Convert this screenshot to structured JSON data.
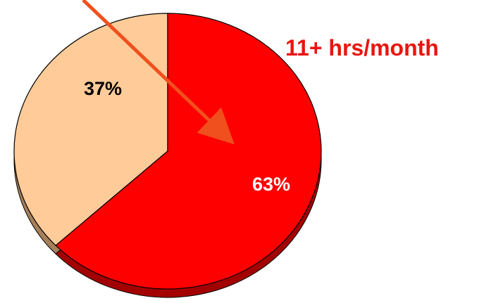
{
  "chart_data": {
    "type": "pie",
    "style": "3d",
    "slices": [
      {
        "label": "37%",
        "value": 37,
        "color": "#FFCC99",
        "side_color": "#A67F5B",
        "label_color": "#000000"
      },
      {
        "label": "63%",
        "value": 63,
        "color": "#FF0000",
        "side_color": "#A30000",
        "label_color": "#FFFFFF"
      }
    ],
    "annotation": {
      "text": "11+ hrs/month",
      "color": "#E8150F",
      "arrow_color": "#F0501E",
      "points_to": "63%"
    }
  }
}
